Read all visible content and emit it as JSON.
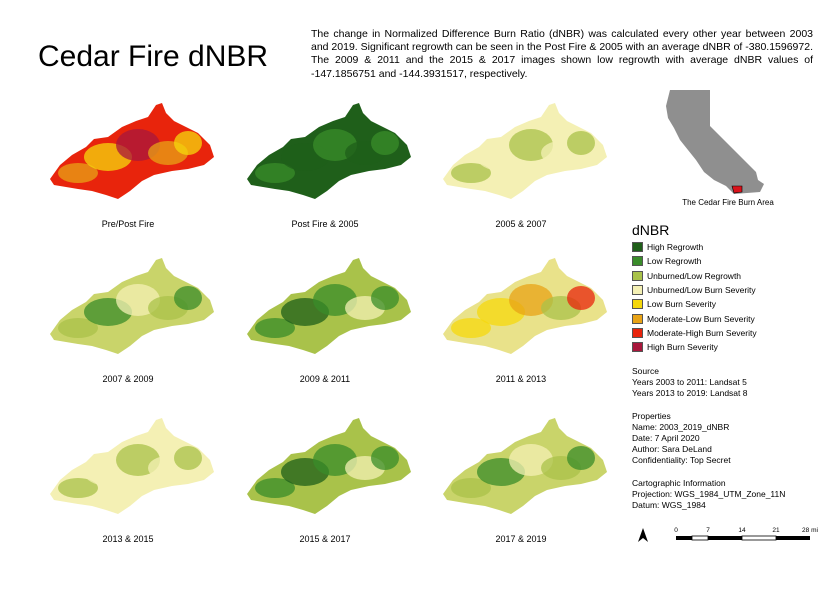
{
  "title": "Cedar Fire dNBR",
  "description": "The change in Normalized Difference Burn Ratio (dNBR) was calculated every other year between 2003 and 2019. Significant regrowth can be seen in the Post Fire & 2005 with an average dNBR of -380.1596972. The 2009 & 2011 and the 2015 & 2017 images shown low regrowth with average dNBR values of -147.1856751 and -144.3931517, respectively.",
  "panels": [
    {
      "label": "Pre/Post Fire",
      "palette": "severe"
    },
    {
      "label": "Post Fire & 2005",
      "palette": "high_regrowth"
    },
    {
      "label": "2005 & 2007",
      "palette": "pale"
    },
    {
      "label": "2007 & 2009",
      "palette": "mixed_green"
    },
    {
      "label": "2009 & 2011",
      "palette": "low_regrowth"
    },
    {
      "label": "2011 & 2013",
      "palette": "yellow"
    },
    {
      "label": "2013 & 2015",
      "palette": "pale"
    },
    {
      "label": "2015 & 2017",
      "palette": "low_regrowth"
    },
    {
      "label": "2017 & 2019",
      "palette": "mixed_green"
    }
  ],
  "inset": {
    "caption": "The Cedar Fire Burn Area",
    "state_color": "#8f8f8f",
    "burn_color": "#d9121b"
  },
  "legend": {
    "title": "dNBR",
    "items": [
      {
        "label": "High Regrowth",
        "color": "#1f5f1a"
      },
      {
        "label": "Low Regrowth",
        "color": "#3a8c2a"
      },
      {
        "label": "Unburned/Low Regrowth",
        "color": "#a9c24a"
      },
      {
        "label": "Unburned/Low Burn Severity",
        "color": "#f4f0b4"
      },
      {
        "label": "Low Burn Severity",
        "color": "#f5d80c"
      },
      {
        "label": "Moderate-Low Burn Severity",
        "color": "#e8a316"
      },
      {
        "label": "Moderate-High Burn Severity",
        "color": "#e8240c"
      },
      {
        "label": "High Burn Severity",
        "color": "#a8173c"
      }
    ]
  },
  "source": {
    "heading": "Source",
    "lines": [
      "Years 2003 to 2011: Landsat 5",
      "Years 2013 to 2019: Landsat 8"
    ]
  },
  "properties": {
    "heading": "Properties",
    "lines": [
      "Name: 2003_2019_dNBR",
      "Date: 7 April 2020",
      "Author: Sara DeLand",
      "Confidentiality: Top Secret"
    ]
  },
  "cartographic": {
    "heading": "Cartographic Information",
    "lines": [
      "Projection: WGS_1984_UTM_Zone_11N",
      "Datum: WGS_1984"
    ]
  },
  "scale_bar": {
    "ticks": [
      "0",
      "7",
      "14",
      "21",
      "28 mi"
    ]
  }
}
